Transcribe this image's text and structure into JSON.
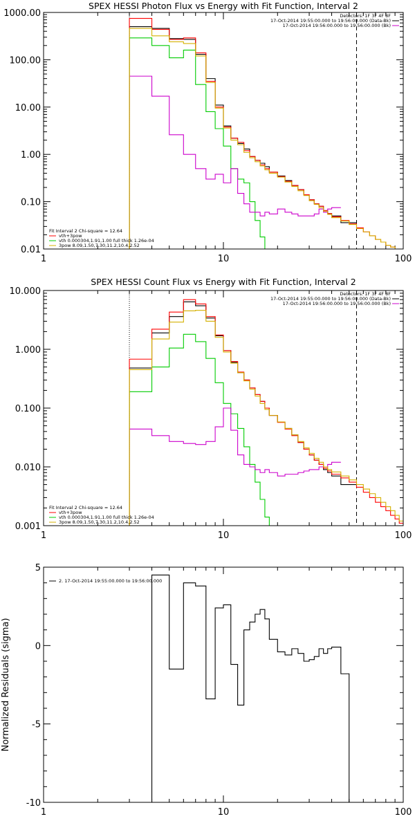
{
  "chart_data": [
    {
      "type": "line",
      "title": "SPEX HESSI Photon Flux vs Energy with Fit Function, Interval 2",
      "xscale": "log",
      "yscale": "log",
      "xlim": [
        1,
        100
      ],
      "ylim": [
        0.01,
        1000
      ],
      "xticks": [
        {
          "v": 1,
          "label": "1"
        },
        {
          "v": 10,
          "label": "10"
        },
        {
          "v": 100,
          "label": "100"
        }
      ],
      "yticks": [
        {
          "v": 0.01,
          "label": "0.01"
        },
        {
          "v": 0.1,
          "label": "0.10"
        },
        {
          "v": 1,
          "label": "1.00"
        },
        {
          "v": 10,
          "label": "10.00"
        },
        {
          "v": 100,
          "label": "100.00"
        },
        {
          "v": 1000,
          "label": "1000.00"
        }
      ],
      "vlines": [
        {
          "x": 3,
          "style": "dotted"
        },
        {
          "x": 55,
          "style": "dashed"
        }
      ],
      "legend_right": {
        "position": "top-right",
        "lines": [
          "Detectors: 1F 3F 4F 8F",
          "17-Oct-2014 19:55:00.000 to 19:56:00.000 (Data-Bk)",
          "17-Oct-2014 19:56:00.000 to 19:56:00.000 (Bk)"
        ],
        "colors": [
          "",
          "#000000",
          "#cc00cc"
        ]
      },
      "legend_left": {
        "position": "bottom-left",
        "lines": [
          "Fit Interval 2   Chi-square = 12.64",
          "vth+3pow",
          "vth 0.000304,1.91,1.00  full thick 1.26e-04",
          "3pow 8.09,1.50,7.30,11.2,10.4,2.52"
        ],
        "colors": [
          "",
          "#ff0000",
          "#00cc00",
          "#d4b000"
        ]
      },
      "edges": [
        3,
        4,
        5,
        6,
        7,
        8,
        9,
        10,
        11,
        12,
        13,
        14,
        15,
        16,
        17,
        18,
        20,
        22,
        24,
        26,
        28,
        30,
        32,
        34,
        36,
        38,
        40,
        45,
        50,
        55,
        60,
        65,
        70,
        75,
        80,
        85,
        90,
        95,
        100
      ],
      "series": [
        {
          "color": "#000000",
          "values": [
            500,
            460,
            280,
            270,
            130,
            40,
            11,
            4,
            2.2,
            1.7,
            1.3,
            0.9,
            0.75,
            0.65,
            0.55,
            0.42,
            0.35,
            0.28,
            0.22,
            0.18,
            0.14,
            0.11,
            0.09,
            0.08,
            0.065,
            0.056,
            0.05,
            0.036,
            0.036
          ]
        },
        {
          "color": "#ff0000",
          "values": [
            750,
            440,
            270,
            290,
            140,
            35,
            10,
            3.8,
            2.2,
            1.8,
            1.2,
            0.9,
            0.75,
            0.6,
            0.5,
            0.42,
            0.34,
            0.27,
            0.22,
            0.18,
            0.14,
            0.11,
            0.09,
            0.08,
            0.065,
            0.056,
            0.048,
            0.04,
            0.034,
            0.028,
            0.023,
            0.019,
            0.016,
            0.014,
            0.012,
            0.011,
            0.01,
            0.009
          ]
        },
        {
          "color": "#00cc00",
          "values": [
            290,
            200,
            110,
            160,
            30,
            8,
            3.5,
            1.5,
            0.5,
            0.3,
            0.25,
            0.1,
            0.04,
            0.018,
            0.009,
            0.0045
          ]
        },
        {
          "color": "#cc00cc",
          "values": [
            45,
            17,
            2.6,
            1,
            0.5,
            0.3,
            0.38,
            0.25,
            0.5,
            0.15,
            0.09,
            0.06,
            0.06,
            0.05,
            0.06,
            0.055,
            0.07,
            0.06,
            0.055,
            0.05,
            0.05,
            0.05,
            0.055,
            0.07,
            0.06,
            0.07,
            0.075
          ]
        },
        {
          "color": "#d4b000",
          "values": [
            460,
            320,
            240,
            220,
            120,
            33,
            9.5,
            3.6,
            2,
            1.6,
            1.1,
            0.85,
            0.7,
            0.57,
            0.47,
            0.4,
            0.33,
            0.26,
            0.21,
            0.17,
            0.135,
            0.105,
            0.088,
            0.075,
            0.063,
            0.054,
            0.046,
            0.039,
            0.033,
            0.027,
            0.023,
            0.019,
            0.016,
            0.014,
            0.012,
            0.011,
            0.01,
            0.009
          ]
        }
      ]
    },
    {
      "type": "line",
      "title": "SPEX HESSI Count Flux vs Energy with Fit Function, Interval 2",
      "xscale": "log",
      "yscale": "log",
      "xlim": [
        1,
        100
      ],
      "ylim": [
        0.001,
        10
      ],
      "xticks": [
        {
          "v": 1,
          "label": "1"
        },
        {
          "v": 10,
          "label": "10"
        },
        {
          "v": 100,
          "label": "100"
        }
      ],
      "yticks": [
        {
          "v": 0.001,
          "label": "0.001"
        },
        {
          "v": 0.01,
          "label": "0.010"
        },
        {
          "v": 0.1,
          "label": "0.100"
        },
        {
          "v": 1,
          "label": "1.000"
        },
        {
          "v": 10,
          "label": "10.000"
        }
      ],
      "vlines": [
        {
          "x": 3,
          "style": "dotted"
        },
        {
          "x": 55,
          "style": "dashed"
        }
      ],
      "legend_right": {
        "position": "top-right",
        "lines": [
          "Detectors: 1F 3F 4F 8F",
          "17-Oct-2014 19:55:00.000 to 19:56:00.000 (Data-Bk)",
          "17-Oct-2014 19:56:00.000 to 19:56:00.000 (Bk)"
        ],
        "colors": [
          "",
          "#000000",
          "#cc00cc"
        ]
      },
      "legend_left": {
        "position": "bottom-left",
        "lines": [
          "Fit Interval 2   Chi-square = 12.64",
          "vth+3pow",
          "vth 0.000304,1.91,1.00  full thick 1.26e-04",
          "3pow 8.09,1.50,7.30,11.2,10.4,2.52"
        ],
        "colors": [
          "",
          "#ff0000",
          "#00cc00",
          "#d4b000"
        ]
      },
      "edges": [
        3,
        4,
        5,
        6,
        7,
        8,
        9,
        10,
        11,
        12,
        13,
        14,
        15,
        16,
        17,
        18,
        20,
        22,
        24,
        26,
        28,
        30,
        32,
        34,
        36,
        38,
        40,
        45,
        50,
        55,
        60,
        65,
        70,
        75,
        80,
        85,
        90,
        95,
        100
      ],
      "series": [
        {
          "color": "#000000",
          "values": [
            0.48,
            1.9,
            3.6,
            6.4,
            5.5,
            3.4,
            1.7,
            0.95,
            0.6,
            0.4,
            0.3,
            0.22,
            0.17,
            0.13,
            0.1,
            0.075,
            0.058,
            0.045,
            0.035,
            0.026,
            0.02,
            0.016,
            0.013,
            0.011,
            0.009,
            0.008,
            0.007,
            0.005,
            0.005
          ]
        },
        {
          "color": "#ff0000",
          "values": [
            0.68,
            2.2,
            4.3,
            7.0,
            5.9,
            3.6,
            1.75,
            0.95,
            0.62,
            0.41,
            0.3,
            0.22,
            0.17,
            0.13,
            0.1,
            0.075,
            0.057,
            0.044,
            0.034,
            0.026,
            0.02,
            0.016,
            0.013,
            0.011,
            0.0095,
            0.0085,
            0.0075,
            0.0065,
            0.0055,
            0.0045,
            0.0037,
            0.003,
            0.0025,
            0.0021,
            0.0018,
            0.0015,
            0.0013,
            0.0011
          ]
        },
        {
          "color": "#00cc00",
          "values": [
            0.19,
            0.5,
            1.05,
            1.8,
            1.35,
            0.7,
            0.27,
            0.12,
            0.08,
            0.045,
            0.022,
            0.011,
            0.0055,
            0.0028,
            0.0014,
            0.0009,
            0.0004
          ]
        },
        {
          "color": "#cc00cc",
          "values": [
            0.044,
            0.034,
            0.027,
            0.025,
            0.024,
            0.027,
            0.048,
            0.1,
            0.042,
            0.016,
            0.011,
            0.01,
            0.009,
            0.008,
            0.009,
            0.008,
            0.007,
            0.0075,
            0.0075,
            0.008,
            0.0085,
            0.009,
            0.009,
            0.01,
            0.01,
            0.011,
            0.012
          ]
        },
        {
          "color": "#d4b000",
          "values": [
            0.45,
            1.5,
            2.9,
            4.5,
            4.6,
            3.0,
            1.6,
            0.9,
            0.58,
            0.4,
            0.29,
            0.21,
            0.16,
            0.12,
            0.095,
            0.075,
            0.058,
            0.045,
            0.035,
            0.027,
            0.021,
            0.017,
            0.014,
            0.012,
            0.01,
            0.009,
            0.0082,
            0.007,
            0.006,
            0.005,
            0.0042,
            0.0035,
            0.003,
            0.0025,
            0.0021,
            0.0018,
            0.0015,
            0.0012
          ]
        }
      ]
    },
    {
      "type": "line",
      "title": "",
      "xscale": "log",
      "yscale": "linear",
      "xlim": [
        1,
        100
      ],
      "ylim": [
        -10,
        5
      ],
      "ylabel": "Normalized Residuals (sigma)",
      "xticks": [
        {
          "v": 1,
          "label": "1"
        },
        {
          "v": 10,
          "label": "10"
        },
        {
          "v": 100,
          "label": "100"
        }
      ],
      "yticks": [
        {
          "v": -10,
          "label": "-10"
        },
        {
          "v": -5,
          "label": "-5"
        },
        {
          "v": 0,
          "label": "0"
        },
        {
          "v": 5,
          "label": "5"
        }
      ],
      "legend_left": {
        "position": "top-left",
        "lines": [
          "2. 17-Oct-2014 19:55:00.000 to 19:56:00.000"
        ],
        "colors": [
          "#000000"
        ]
      },
      "edges": [
        3,
        4,
        5,
        6,
        7,
        8,
        9,
        10,
        11,
        12,
        13,
        14,
        15,
        16,
        17,
        18,
        20,
        22,
        24,
        26,
        28,
        30,
        32,
        34,
        36,
        38,
        40,
        45,
        50,
        55
      ],
      "series": [
        {
          "color": "#000000",
          "values": [
            -10,
            4.5,
            -1.5,
            4.0,
            3.8,
            -3.4,
            2.4,
            2.6,
            -1.2,
            -3.8,
            1.0,
            1.5,
            2.0,
            2.3,
            1.7,
            0.4,
            -0.4,
            -0.6,
            -0.2,
            -0.5,
            -1.0,
            -0.9,
            -0.7,
            -0.2,
            -0.5,
            -0.2,
            -0.1,
            -1.8,
            -10
          ],
          "start_value": -10
        }
      ]
    }
  ]
}
